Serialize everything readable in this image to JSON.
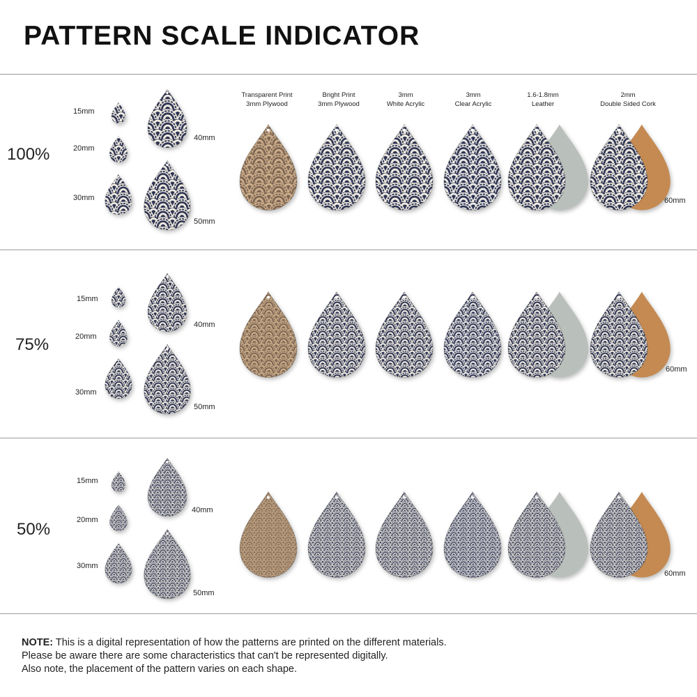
{
  "title": "PATTERN SCALE INDICATOR",
  "materials": [
    {
      "line1": "Transparent Print",
      "line2": "3mm Plywood",
      "kind": "wood"
    },
    {
      "line1": "Bright Print",
      "line2": "3mm Plywood",
      "kind": "bright"
    },
    {
      "line1": "3mm",
      "line2": "White Acrylic",
      "kind": "white"
    },
    {
      "line1": "3mm",
      "line2": "Clear Acrylic",
      "kind": "clear"
    },
    {
      "line1": "1.6-1.8mm",
      "line2": "Leather",
      "kind": "leather"
    },
    {
      "line1": "2mm",
      "line2": "Double Sided Cork",
      "kind": "cork"
    }
  ],
  "sizes": [
    "15mm",
    "20mm",
    "30mm",
    "40mm",
    "50mm"
  ],
  "material_size": "60mm",
  "rows": [
    {
      "scale": "100%",
      "scale_value": 1.0
    },
    {
      "scale": "75%",
      "scale_value": 0.75
    },
    {
      "scale": "50%",
      "scale_value": 0.5
    }
  ],
  "colors": {
    "navy": "#2d3352",
    "cream": "#f1ede2",
    "wood": "#cdae8a",
    "wood_ink": "#7b6452",
    "leather": "#b9bfba",
    "cork": "#c48a52"
  },
  "note": {
    "label": "NOTE:",
    "line1": "This is a digital representation of how the patterns are printed on the different materials.",
    "line2": "Please be aware there are some characteristics that can't be represented digitally.",
    "line3": "Also note, the placement of the pattern varies on each shape."
  }
}
